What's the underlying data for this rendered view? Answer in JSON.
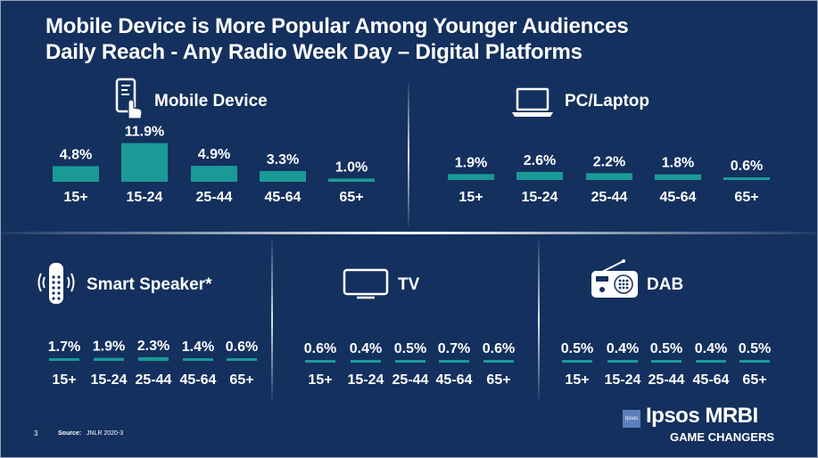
{
  "title": {
    "line1": "Mobile Device is More Popular  Among Younger Audiences",
    "line2": "Daily Reach - Any Radio Week Day – Digital Platforms"
  },
  "colors": {
    "background": "#14305e",
    "bar": "#1a9a96",
    "text": "#ffffff"
  },
  "chart_data": [
    {
      "type": "bar",
      "title": "Mobile Device",
      "icon": "mobile-touch-icon",
      "categories": [
        "15+",
        "15-24",
        "25-44",
        "45-64",
        "65+"
      ],
      "values": [
        4.8,
        11.9,
        4.9,
        3.3,
        1.0
      ],
      "labels": [
        "4.8%",
        "11.9%",
        "4.9%",
        "3.3%",
        "1.0%"
      ]
    },
    {
      "type": "bar",
      "title": "PC/Laptop",
      "icon": "laptop-icon",
      "categories": [
        "15+",
        "15-24",
        "25-44",
        "45-64",
        "65+"
      ],
      "values": [
        1.9,
        2.6,
        2.2,
        1.8,
        0.6
      ],
      "labels": [
        "1.9%",
        "2.6%",
        "2.2%",
        "1.8%",
        "0.6%"
      ]
    },
    {
      "type": "bar",
      "title": "Smart Speaker*",
      "icon": "smart-speaker-icon",
      "categories": [
        "15+",
        "15-24",
        "25-44",
        "45-64",
        "65+"
      ],
      "values": [
        1.7,
        1.9,
        2.3,
        1.4,
        0.6
      ],
      "labels": [
        "1.7%",
        "1.9%",
        "2.3%",
        "1.4%",
        "0.6%"
      ]
    },
    {
      "type": "bar",
      "title": "TV",
      "icon": "tv-icon",
      "categories": [
        "15+",
        "15-24",
        "25-44",
        "45-64",
        "65+"
      ],
      "values": [
        0.6,
        0.4,
        0.5,
        0.7,
        0.6
      ],
      "labels": [
        "0.6%",
        "0.4%",
        "0.5%",
        "0.7%",
        "0.6%"
      ]
    },
    {
      "type": "bar",
      "title": "DAB",
      "icon": "radio-icon",
      "categories": [
        "15+",
        "15-24",
        "25-44",
        "45-64",
        "65+"
      ],
      "values": [
        0.5,
        0.4,
        0.5,
        0.4,
        0.5
      ],
      "labels": [
        "0.5%",
        "0.4%",
        "0.5%",
        "0.4%",
        "0.5%"
      ]
    }
  ],
  "footer": {
    "page_number": "3",
    "source_label": "Source:",
    "source_text": "JNLR 2020-3"
  },
  "logo": {
    "box_text": "Ipsos",
    "brand": "Ipsos MRBI",
    "tagline": "GAME CHANGERS"
  }
}
